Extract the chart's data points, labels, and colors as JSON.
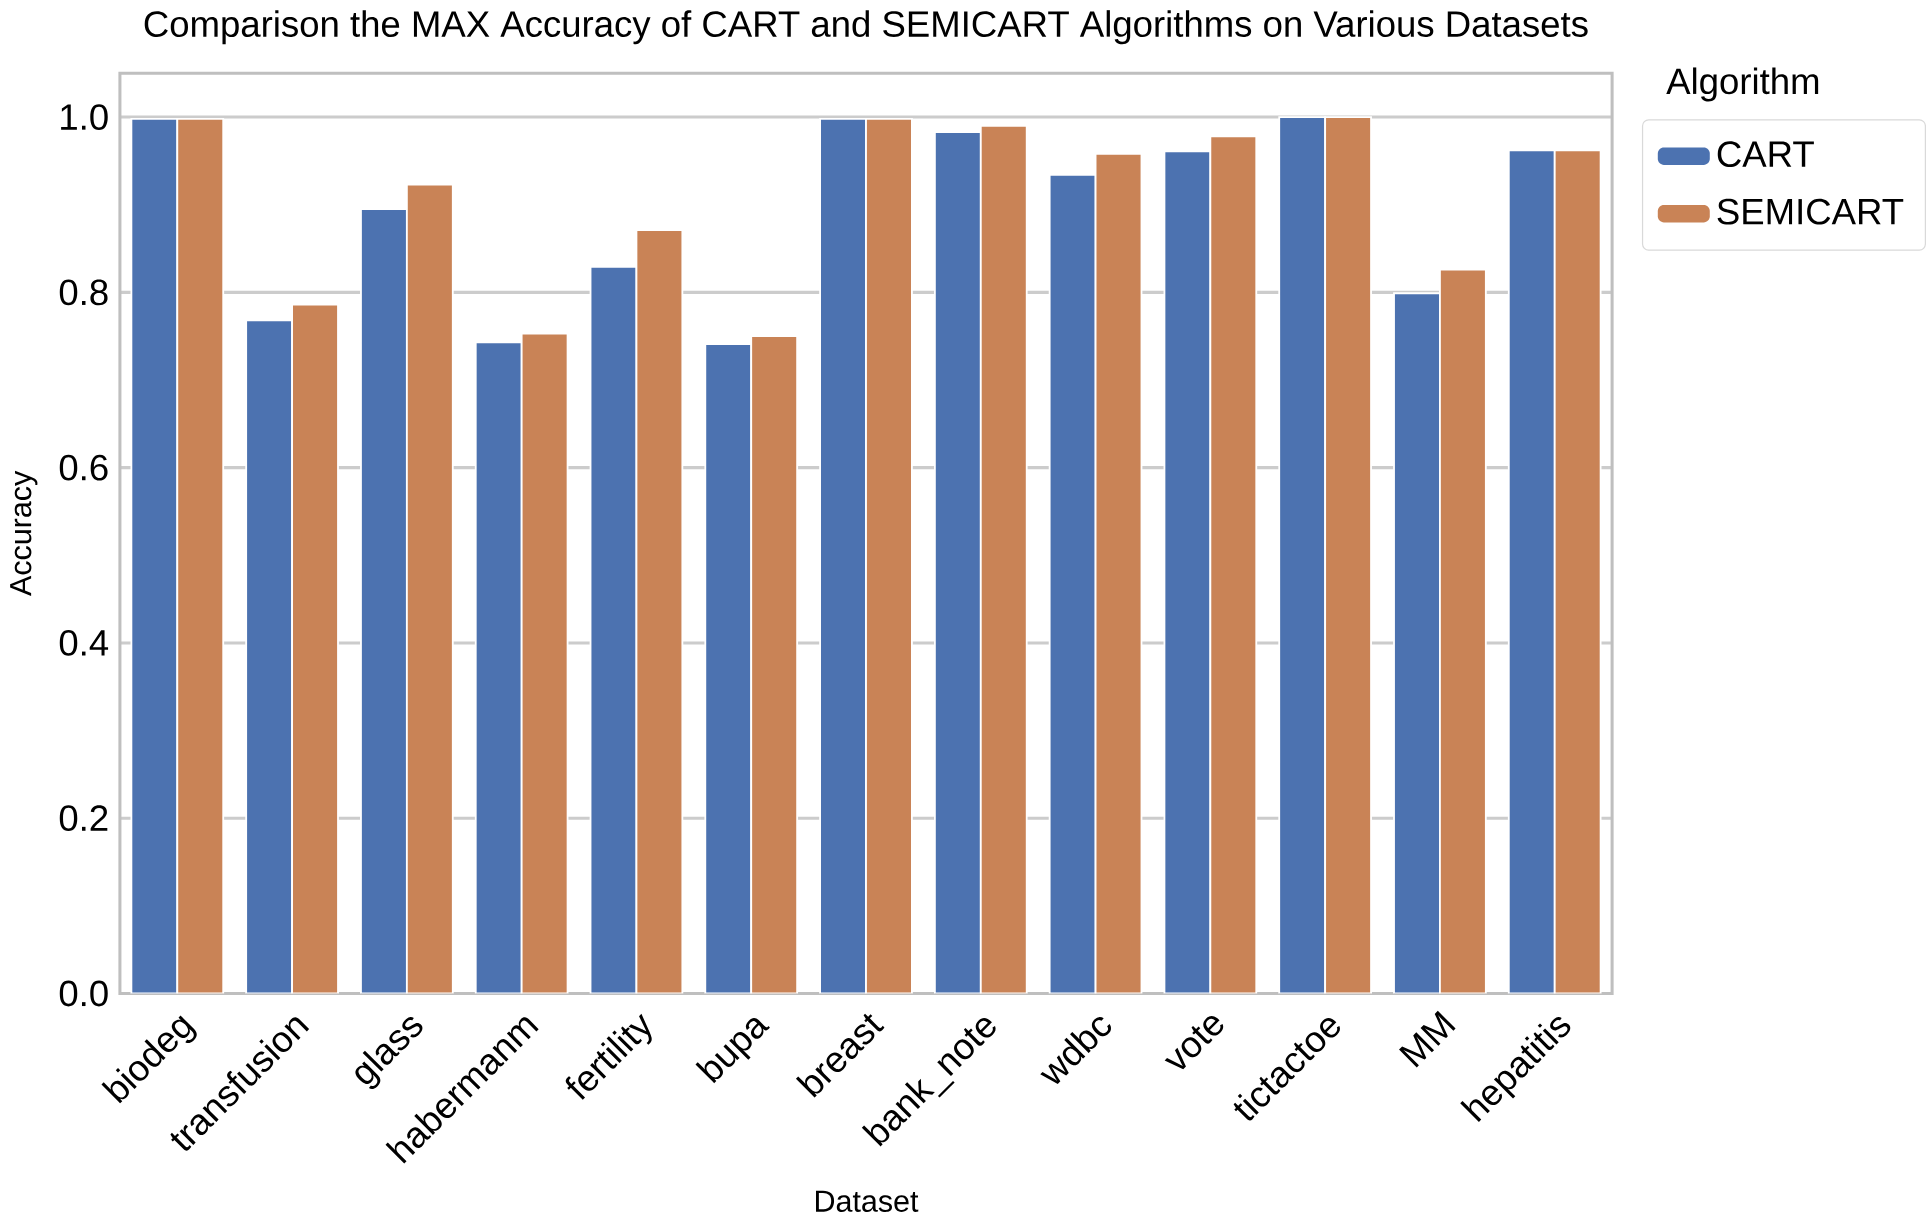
{
  "chart_data": {
    "type": "bar",
    "title": "Comparison the MAX Accuracy of CART and SEMICART Algorithms on Various Datasets",
    "xlabel": "Dataset",
    "ylabel": "Accuracy",
    "legend_title": "Algorithm",
    "legend": "top right",
    "categories": [
      "biodeg",
      "transfusion",
      "glass",
      "habermanm",
      "fertility",
      "bupa",
      "breast",
      "bank_note",
      "wdbc",
      "vote",
      "tictactoe",
      "MM",
      "hepatitis"
    ],
    "series": [
      {
        "name": "CART",
        "color": "#4c72b0",
        "values": [
          0.998,
          0.768,
          0.895,
          0.743,
          0.829,
          0.741,
          0.998,
          0.983,
          0.934,
          0.961,
          1.0,
          0.799,
          0.962
        ]
      },
      {
        "name": "SEMICART",
        "color": "#c98356",
        "values": [
          0.998,
          0.786,
          0.923,
          0.753,
          0.871,
          0.75,
          0.998,
          0.99,
          0.958,
          0.978,
          1.0,
          0.826,
          0.962
        ]
      }
    ],
    "ylim": [
      0,
      1.05
    ],
    "yticks": [
      {
        "value": 0,
        "label": "0.0"
      },
      0.2,
      0.4,
      0.6,
      0.8,
      {
        "value": 1,
        "label": "1.0"
      }
    ],
    "grid": "y"
  }
}
